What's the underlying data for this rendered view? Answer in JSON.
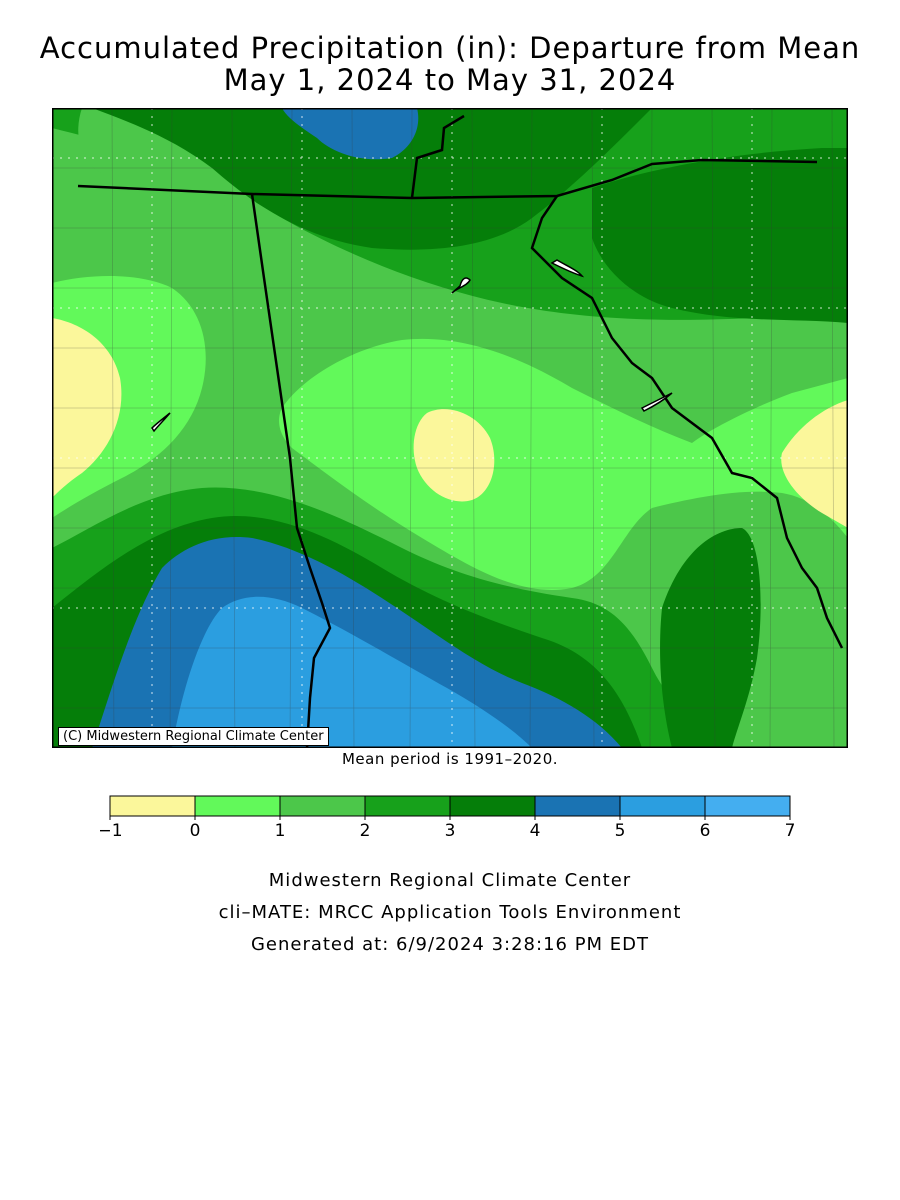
{
  "title": {
    "line1": "Accumulated Precipitation (in): Departure from Mean",
    "line2": "May 1, 2024 to May 31, 2024"
  },
  "map": {
    "credit": "(C) Midwestern Regional Climate Center",
    "border_color": "#000000"
  },
  "mean_note": "Mean period is 1991–2020.",
  "legend": {
    "breaks": [
      "−1",
      "0",
      "1",
      "2",
      "3",
      "4",
      "5",
      "6",
      "7"
    ],
    "colors": [
      "#fbf79b",
      "#62f95a",
      "#4cc74a",
      "#17a11b",
      "#057e09",
      "#1a73b3",
      "#2b9ee0",
      "#44aef0"
    ]
  },
  "footer": {
    "line1": "Midwestern Regional Climate Center",
    "line2": "cli–MATE: MRCC Application Tools Environment",
    "line3": "Generated at: 6/9/2024 3:28:16 PM EDT"
  }
}
